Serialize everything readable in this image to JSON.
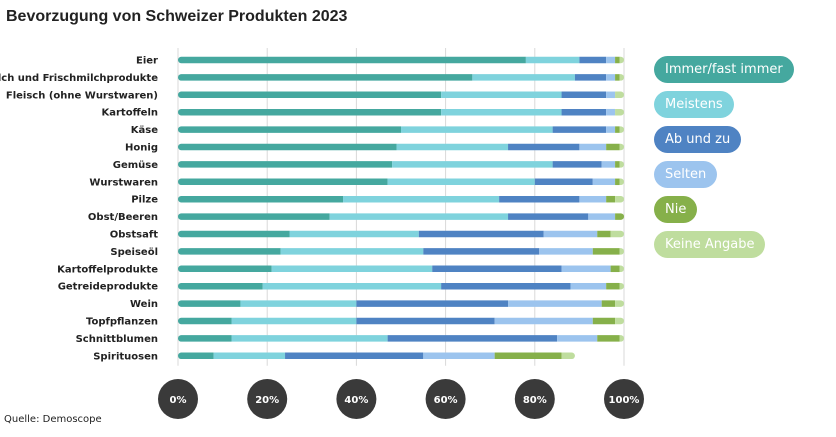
{
  "chart_data": {
    "type": "bar",
    "orientation": "horizontal",
    "stacked": true,
    "title": "Bevorzugung von Schweizer Produkten 2023",
    "categories": [
      "Eier",
      "Milch und Frischmilchprodukte",
      "Fleisch (ohne Wurstwaren)",
      "Kartoffeln",
      "Käse",
      "Honig",
      "Gemüse",
      "Wurstwaren",
      "Pilze",
      "Obst/Beeren",
      "Obstsaft",
      "Speiseöl",
      "Kartoffelprodukte",
      "Getreideprodukte",
      "Wein",
      "Topfpflanzen",
      "Schnittblumen",
      "Spirituosen"
    ],
    "series": [
      {
        "name": "Immer/fast immer",
        "color": "#45a89f",
        "values": [
          78,
          66,
          59,
          59,
          50,
          49,
          48,
          47,
          37,
          34,
          25,
          23,
          21,
          19,
          14,
          12,
          12,
          8
        ]
      },
      {
        "name": "Meistens",
        "color": "#7fd3dd",
        "values": [
          12,
          23,
          27,
          27,
          34,
          25,
          36,
          33,
          35,
          40,
          29,
          32,
          36,
          40,
          26,
          28,
          35,
          16
        ]
      },
      {
        "name": "Ab und zu",
        "color": "#4f83c3",
        "values": [
          6,
          7,
          10,
          10,
          12,
          16,
          11,
          13,
          18,
          18,
          28,
          26,
          29,
          29,
          34,
          31,
          38,
          31
        ]
      },
      {
        "name": "Selten",
        "color": "#9cc4ee",
        "values": [
          2,
          2,
          2,
          2,
          2,
          6,
          3,
          5,
          6,
          6,
          12,
          12,
          11,
          8,
          21,
          22,
          9,
          16
        ]
      },
      {
        "name": "Nie",
        "color": "#86b04a",
        "values": [
          1,
          1,
          0,
          0,
          1,
          3,
          1,
          1,
          2,
          2,
          3,
          6,
          2,
          3,
          3,
          5,
          5,
          15
        ]
      },
      {
        "name": "Keine Angabe",
        "color": "#bfdd9e",
        "values": [
          1,
          1,
          2,
          2,
          1,
          1,
          1,
          1,
          2,
          0,
          3,
          1,
          1,
          1,
          2,
          2,
          1,
          3
        ]
      }
    ],
    "x_ticks": [
      "0%",
      "20%",
      "40%",
      "60%",
      "80%",
      "100%"
    ],
    "xlim": [
      0,
      100
    ],
    "grid": true,
    "legend_position": "right"
  },
  "source": "Quelle: Demoscope"
}
